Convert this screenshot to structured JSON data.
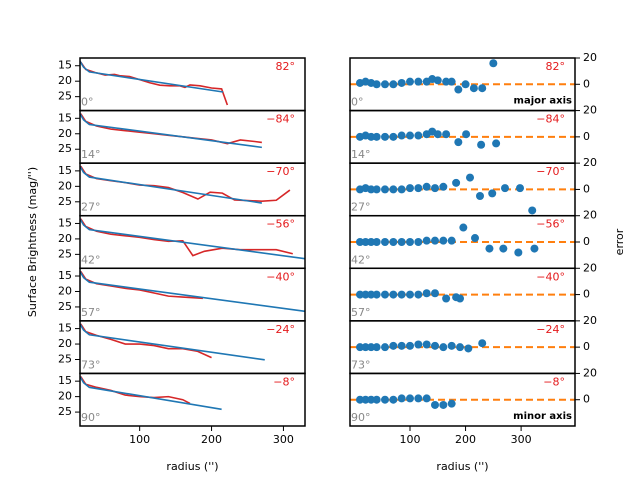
{
  "chart_data": [
    {
      "type": "line",
      "angle": "82°",
      "inclination": "0°",
      "xlim": [
        17,
        330
      ],
      "ylim": [
        29.5,
        12.5
      ],
      "yticks": [
        15,
        20,
        25
      ],
      "series": [
        {
          "color": "#d62728",
          "x": [
            18,
            25,
            38,
            52,
            65,
            72,
            86,
            100,
            114,
            128,
            142,
            156,
            163,
            170,
            184,
            200,
            214,
            222
          ],
          "values": [
            13.8,
            16.2,
            17.2,
            18,
            17.8,
            18.2,
            18.5,
            19.5,
            20.5,
            21.3,
            21.5,
            21.5,
            22,
            21.2,
            21.5,
            22.2,
            22.5,
            27.7
          ]
        },
        {
          "color": "#1f77b4",
          "x": [
            17,
            22,
            30,
            216
          ],
          "values": [
            13.5,
            15.5,
            17,
            23.5
          ]
        }
      ]
    },
    {
      "type": "line",
      "angle": "−84°",
      "inclination": "14°",
      "xlim": [
        17,
        330
      ],
      "ylim": [
        29.5,
        12.5
      ],
      "yticks": [
        15,
        20,
        25
      ],
      "series": [
        {
          "color": "#d62728",
          "x": [
            18,
            25,
            40,
            60,
            80,
            100,
            120,
            140,
            160,
            180,
            200,
            222,
            240,
            260,
            270
          ],
          "values": [
            13.5,
            16,
            17.5,
            18.5,
            19,
            19.5,
            20,
            20.5,
            21,
            21.5,
            22,
            23.2,
            22,
            22.5,
            22.8
          ]
        },
        {
          "color": "#1f77b4",
          "x": [
            17,
            22,
            30,
            270
          ],
          "values": [
            13.5,
            15.5,
            17,
            24.4
          ]
        }
      ]
    },
    {
      "type": "line",
      "angle": "−70°",
      "inclination": "27°",
      "xlim": [
        17,
        330
      ],
      "ylim": [
        29.5,
        12.5
      ],
      "yticks": [
        15,
        20,
        25
      ],
      "series": [
        {
          "color": "#d62728",
          "x": [
            18,
            25,
            40,
            60,
            80,
            100,
            120,
            140,
            160,
            181,
            198,
            215,
            232,
            250,
            270,
            290,
            309
          ],
          "values": [
            13.5,
            16,
            17.5,
            18.2,
            18.8,
            19.6,
            19.8,
            20.4,
            22,
            24.1,
            21.9,
            22.2,
            24.4,
            24.6,
            24.8,
            24.5,
            21.2
          ]
        },
        {
          "color": "#1f77b4",
          "x": [
            17,
            22,
            30,
            270
          ],
          "values": [
            13.5,
            15.5,
            17,
            25.4
          ]
        }
      ]
    },
    {
      "type": "line",
      "angle": "−56°",
      "inclination": "42°",
      "ylabel": "Surface Brightness (mag/'')",
      "xlim": [
        17,
        330
      ],
      "ylim": [
        29.5,
        12.5
      ],
      "yticks": [
        15,
        20,
        25
      ],
      "series": [
        {
          "color": "#d62728",
          "x": [
            18,
            25,
            40,
            60,
            80,
            100,
            120,
            140,
            160,
            174,
            190,
            215,
            240,
            270,
            290,
            313
          ],
          "values": [
            13.5,
            16,
            17.5,
            18.5,
            19,
            19.5,
            20.2,
            20.8,
            20.6,
            25.4,
            24,
            23,
            23.5,
            23.5,
            23.5,
            24.8
          ]
        },
        {
          "color": "#1f77b4",
          "x": [
            17,
            22,
            30,
            330
          ],
          "values": [
            13.5,
            15.5,
            17,
            26.4
          ]
        }
      ]
    },
    {
      "type": "line",
      "angle": "−40°",
      "inclination": "57°",
      "xlim": [
        17,
        330
      ],
      "ylim": [
        29.5,
        12.5
      ],
      "yticks": [
        15,
        20,
        25
      ],
      "series": [
        {
          "color": "#d62728",
          "x": [
            18,
            25,
            40,
            60,
            80,
            100,
            120,
            140,
            160,
            188
          ],
          "values": [
            13.5,
            16,
            17.5,
            18.2,
            19,
            19.5,
            20.5,
            21.5,
            21.8,
            22.2
          ]
        },
        {
          "color": "#1f77b4",
          "x": [
            17,
            22,
            30,
            330
          ],
          "values": [
            13.5,
            15.5,
            17,
            26.4
          ]
        }
      ]
    },
    {
      "type": "line",
      "angle": "−24°",
      "inclination": "73°",
      "xlim": [
        17,
        330
      ],
      "ylim": [
        29.5,
        12.5
      ],
      "yticks": [
        15,
        20,
        25
      ],
      "series": [
        {
          "color": "#d62728",
          "x": [
            18,
            25,
            40,
            60,
            80,
            100,
            120,
            140,
            160,
            180,
            200
          ],
          "values": [
            13.5,
            16,
            17.2,
            18.5,
            20,
            20,
            20.5,
            21.5,
            21.5,
            22.3,
            24.4
          ]
        },
        {
          "color": "#1f77b4",
          "x": [
            17,
            22,
            30,
            274
          ],
          "values": [
            13.5,
            15.5,
            17,
            25.1
          ]
        }
      ]
    },
    {
      "type": "line",
      "angle": "−8°",
      "inclination": "90°",
      "xlabel": "radius ('')",
      "xlim": [
        17,
        330
      ],
      "xticks": [
        100,
        200,
        300
      ],
      "ylim": [
        29.5,
        12.5
      ],
      "yticks": [
        15,
        20,
        25
      ],
      "series": [
        {
          "color": "#d62728",
          "x": [
            18,
            25,
            40,
            60,
            80,
            100,
            120,
            140,
            160,
            170
          ],
          "values": [
            13.5,
            16,
            17,
            18,
            19.5,
            20,
            20.3,
            20,
            21,
            22.2
          ]
        },
        {
          "color": "#1f77b4",
          "x": [
            17,
            22,
            30,
            214
          ],
          "values": [
            13.5,
            15.5,
            17,
            24.1
          ]
        }
      ]
    },
    {
      "type": "scatter",
      "angle": "82°",
      "inclination": "0°",
      "axis_label": "major axis",
      "xlim": [
        -8,
        397
      ],
      "ylim": [
        -20,
        20
      ],
      "yticks": [
        0,
        20
      ],
      "reference_line": {
        "value": 0,
        "color": "#ff7f0e"
      },
      "series": [
        {
          "color": "#1f77b4",
          "x": [
            10,
            20,
            30,
            40,
            55,
            70,
            85,
            100,
            115,
            130,
            140,
            150,
            165,
            175,
            187,
            200,
            215,
            230,
            250
          ],
          "values": [
            1,
            2,
            1,
            0,
            0,
            0,
            1,
            2,
            2,
            2,
            4,
            3,
            2,
            2,
            -4,
            0,
            -3,
            -3,
            16
          ]
        }
      ]
    },
    {
      "type": "scatter",
      "angle": "−84°",
      "inclination": "14°",
      "xlim": [
        -8,
        397
      ],
      "ylim": [
        -20,
        20
      ],
      "yticks": [
        0,
        20
      ],
      "reference_line": {
        "value": 0,
        "color": "#ff7f0e"
      },
      "series": [
        {
          "color": "#1f77b4",
          "x": [
            10,
            20,
            30,
            40,
            55,
            70,
            85,
            100,
            115,
            130,
            140,
            150,
            165,
            187,
            201,
            228,
            255
          ],
          "values": [
            0,
            1,
            0,
            0,
            0,
            0,
            1,
            1,
            1,
            2,
            4,
            2,
            2,
            -4,
            2,
            -6,
            -5
          ]
        }
      ]
    },
    {
      "type": "scatter",
      "angle": "−70°",
      "inclination": "27°",
      "xlim": [
        -8,
        397
      ],
      "ylim": [
        -20,
        20
      ],
      "yticks": [
        0,
        20
      ],
      "reference_line": {
        "value": 0,
        "color": "#ff7f0e"
      },
      "series": [
        {
          "color": "#1f77b4",
          "x": [
            10,
            20,
            30,
            40,
            55,
            70,
            85,
            100,
            115,
            130,
            145,
            160,
            183,
            208,
            226,
            248,
            271,
            298,
            320
          ],
          "values": [
            0,
            1,
            0,
            0,
            0,
            0,
            0,
            1,
            1,
            2,
            1,
            2,
            5,
            9,
            -5,
            -3,
            1,
            1,
            -16
          ]
        }
      ]
    },
    {
      "type": "scatter",
      "angle": "−56°",
      "inclination": "42°",
      "ylabel": "error",
      "xlim": [
        -8,
        397
      ],
      "ylim": [
        -20,
        20
      ],
      "yticks": [
        0,
        20
      ],
      "reference_line": {
        "value": 0,
        "color": "#ff7f0e"
      },
      "series": [
        {
          "color": "#1f77b4",
          "x": [
            10,
            20,
            30,
            40,
            55,
            70,
            85,
            100,
            115,
            130,
            145,
            160,
            175,
            196,
            217,
            243,
            268,
            295,
            324
          ],
          "values": [
            0,
            0,
            0,
            0,
            0,
            0,
            0,
            0,
            0,
            1,
            1,
            1,
            1,
            11,
            3,
            -5,
            -5,
            -8,
            -5
          ]
        }
      ]
    },
    {
      "type": "scatter",
      "angle": "−40°",
      "inclination": "57°",
      "xlim": [
        -8,
        397
      ],
      "ylim": [
        -20,
        20
      ],
      "yticks": [
        0,
        20
      ],
      "reference_line": {
        "value": 0,
        "color": "#ff7f0e"
      },
      "series": [
        {
          "color": "#1f77b4",
          "x": [
            10,
            20,
            30,
            40,
            55,
            70,
            85,
            100,
            115,
            130,
            145,
            165,
            183,
            190
          ],
          "values": [
            0,
            0,
            0,
            0,
            0,
            0,
            0,
            0,
            0,
            1,
            1,
            -3,
            -2,
            -3
          ]
        }
      ]
    },
    {
      "type": "scatter",
      "angle": "−24°",
      "inclination": "73°",
      "xlim": [
        -8,
        397
      ],
      "ylim": [
        -20,
        20
      ],
      "yticks": [
        0,
        20
      ],
      "reference_line": {
        "value": 0,
        "color": "#ff7f0e"
      },
      "series": [
        {
          "color": "#1f77b4",
          "x": [
            10,
            20,
            30,
            40,
            55,
            70,
            85,
            100,
            115,
            130,
            145,
            160,
            175,
            190,
            205,
            230
          ],
          "values": [
            0,
            0,
            0,
            0,
            0,
            1,
            1,
            1,
            2,
            2,
            1,
            0,
            1,
            0,
            -1,
            3
          ]
        }
      ]
    },
    {
      "type": "scatter",
      "angle": "−8°",
      "inclination": "90°",
      "axis_label": "minor axis",
      "xlabel": "radius ('')",
      "xlim": [
        -8,
        397
      ],
      "xticks": [
        100,
        200,
        300
      ],
      "ylim": [
        -20,
        20
      ],
      "yticks": [
        0,
        20
      ],
      "reference_line": {
        "value": 0,
        "color": "#ff7f0e"
      },
      "series": [
        {
          "color": "#1f77b4",
          "x": [
            10,
            20,
            30,
            40,
            55,
            70,
            85,
            100,
            115,
            130,
            145,
            160,
            175
          ],
          "values": [
            0,
            0,
            0,
            0,
            0,
            0,
            1,
            1,
            1,
            1,
            -4,
            -4,
            -3
          ]
        }
      ]
    }
  ]
}
